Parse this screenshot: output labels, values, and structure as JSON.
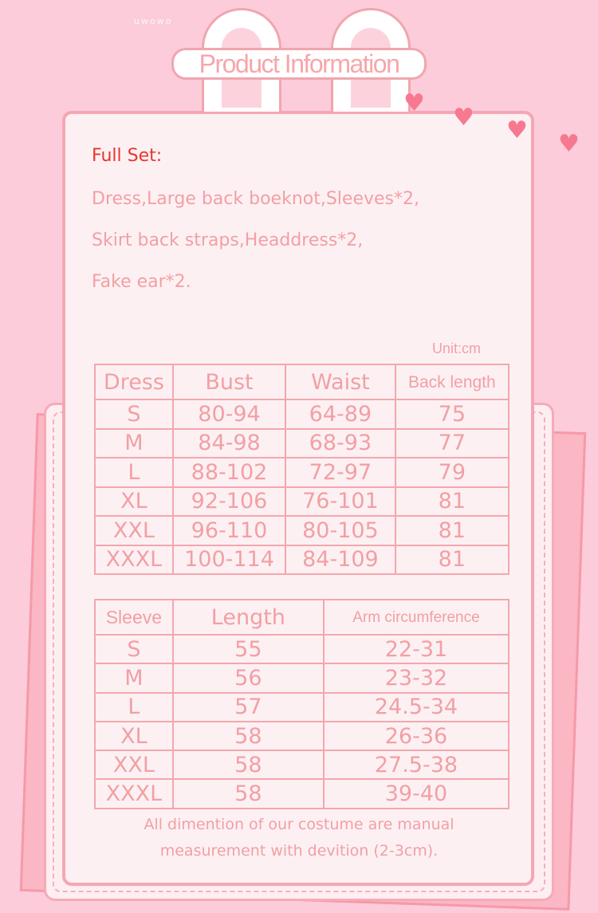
{
  "brand": "uwowo",
  "title": "Product Information",
  "full_set": {
    "heading": "Full Set:",
    "lines": [
      "Dress,Large back boeknot,Sleeves*2,",
      "Skirt back straps,Headdress*2,",
      "Fake ear*2."
    ]
  },
  "unit": "Unit:cm",
  "dress_table": {
    "headers": [
      "Dress",
      "Bust",
      "Waist",
      "Back length"
    ],
    "rows": [
      [
        "S",
        "80-94",
        "64-89",
        "75"
      ],
      [
        "M",
        "84-98",
        "68-93",
        "77"
      ],
      [
        "L",
        "88-102",
        "72-97",
        "79"
      ],
      [
        "XL",
        "92-106",
        "76-101",
        "81"
      ],
      [
        "XXL",
        "96-110",
        "80-105",
        "81"
      ],
      [
        "XXXL",
        "100-114",
        "84-109",
        "81"
      ]
    ]
  },
  "sleeve_table": {
    "headers": [
      "Sleeve",
      "Length",
      "Arm circumference"
    ],
    "rows": [
      [
        "S",
        "55",
        "22-31"
      ],
      [
        "M",
        "56",
        "23-32"
      ],
      [
        "L",
        "57",
        "24.5-34"
      ],
      [
        "XL",
        "58",
        "26-36"
      ],
      [
        "XXL",
        "58",
        "27.5-38"
      ],
      [
        "XXXL",
        "58",
        "39-40"
      ]
    ]
  },
  "note": [
    "All dimention of our costume are manual",
    "measurement with devition (2-3cm)."
  ],
  "colors": {
    "background": "#fcccdb",
    "card": "#fdf0f3",
    "border": "#f6a6b3",
    "text": "#f1a0a4",
    "heading": "#e8352f"
  }
}
